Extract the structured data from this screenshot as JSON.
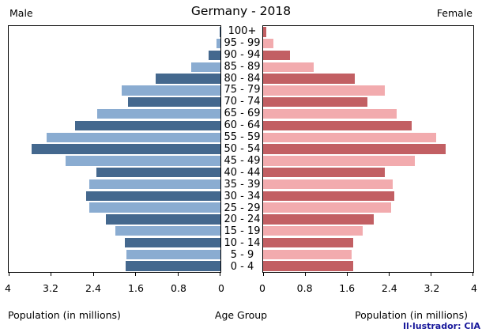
{
  "chart_data": {
    "type": "bar",
    "variant": "population-pyramid",
    "title": "Germany - 2018",
    "left_side_label": "Male",
    "right_side_label": "Female",
    "age_axis_label": "Age Group",
    "left_axis_label": "Population (in millions)",
    "right_axis_label": "Population (in millions)",
    "credit": "Il·lustrador: CIA",
    "xlim": [
      0,
      4
    ],
    "tick_labels_left": [
      "4",
      "3.2",
      "2.4",
      "1.6",
      "0.8",
      "0"
    ],
    "tick_labels_right": [
      "0",
      "0.8",
      "1.6",
      "2.4",
      "3.2",
      "4"
    ],
    "grid": false,
    "categories": [
      "100+",
      "95 - 99",
      "90 - 94",
      "85 - 89",
      "80 - 84",
      "75 - 79",
      "70 - 74",
      "65 - 69",
      "60 - 64",
      "55 - 59",
      "50 - 54",
      "45 - 49",
      "40 - 44",
      "35 - 39",
      "30 - 34",
      "25 - 29",
      "20 - 24",
      "15 - 19",
      "10 - 14",
      "5 - 9",
      "0 - 4"
    ],
    "series": [
      {
        "name": "Male",
        "values": [
          0.02,
          0.07,
          0.22,
          0.55,
          1.22,
          1.86,
          1.74,
          2.33,
          2.74,
          3.29,
          3.56,
          2.93,
          2.35,
          2.48,
          2.54,
          2.48,
          2.17,
          1.99,
          1.8,
          1.78,
          1.79
        ]
      },
      {
        "name": "Female",
        "values": [
          0.06,
          0.2,
          0.51,
          0.96,
          1.74,
          2.31,
          1.99,
          2.54,
          2.82,
          3.29,
          3.47,
          2.88,
          2.32,
          2.47,
          2.49,
          2.43,
          2.1,
          1.9,
          1.72,
          1.68,
          1.71
        ]
      }
    ],
    "colors": {
      "male_dark": "#44688e",
      "male_light": "#8aacd1",
      "female_dark": "#c25f63",
      "female_light": "#f2abae",
      "credit": "#18189b"
    }
  }
}
